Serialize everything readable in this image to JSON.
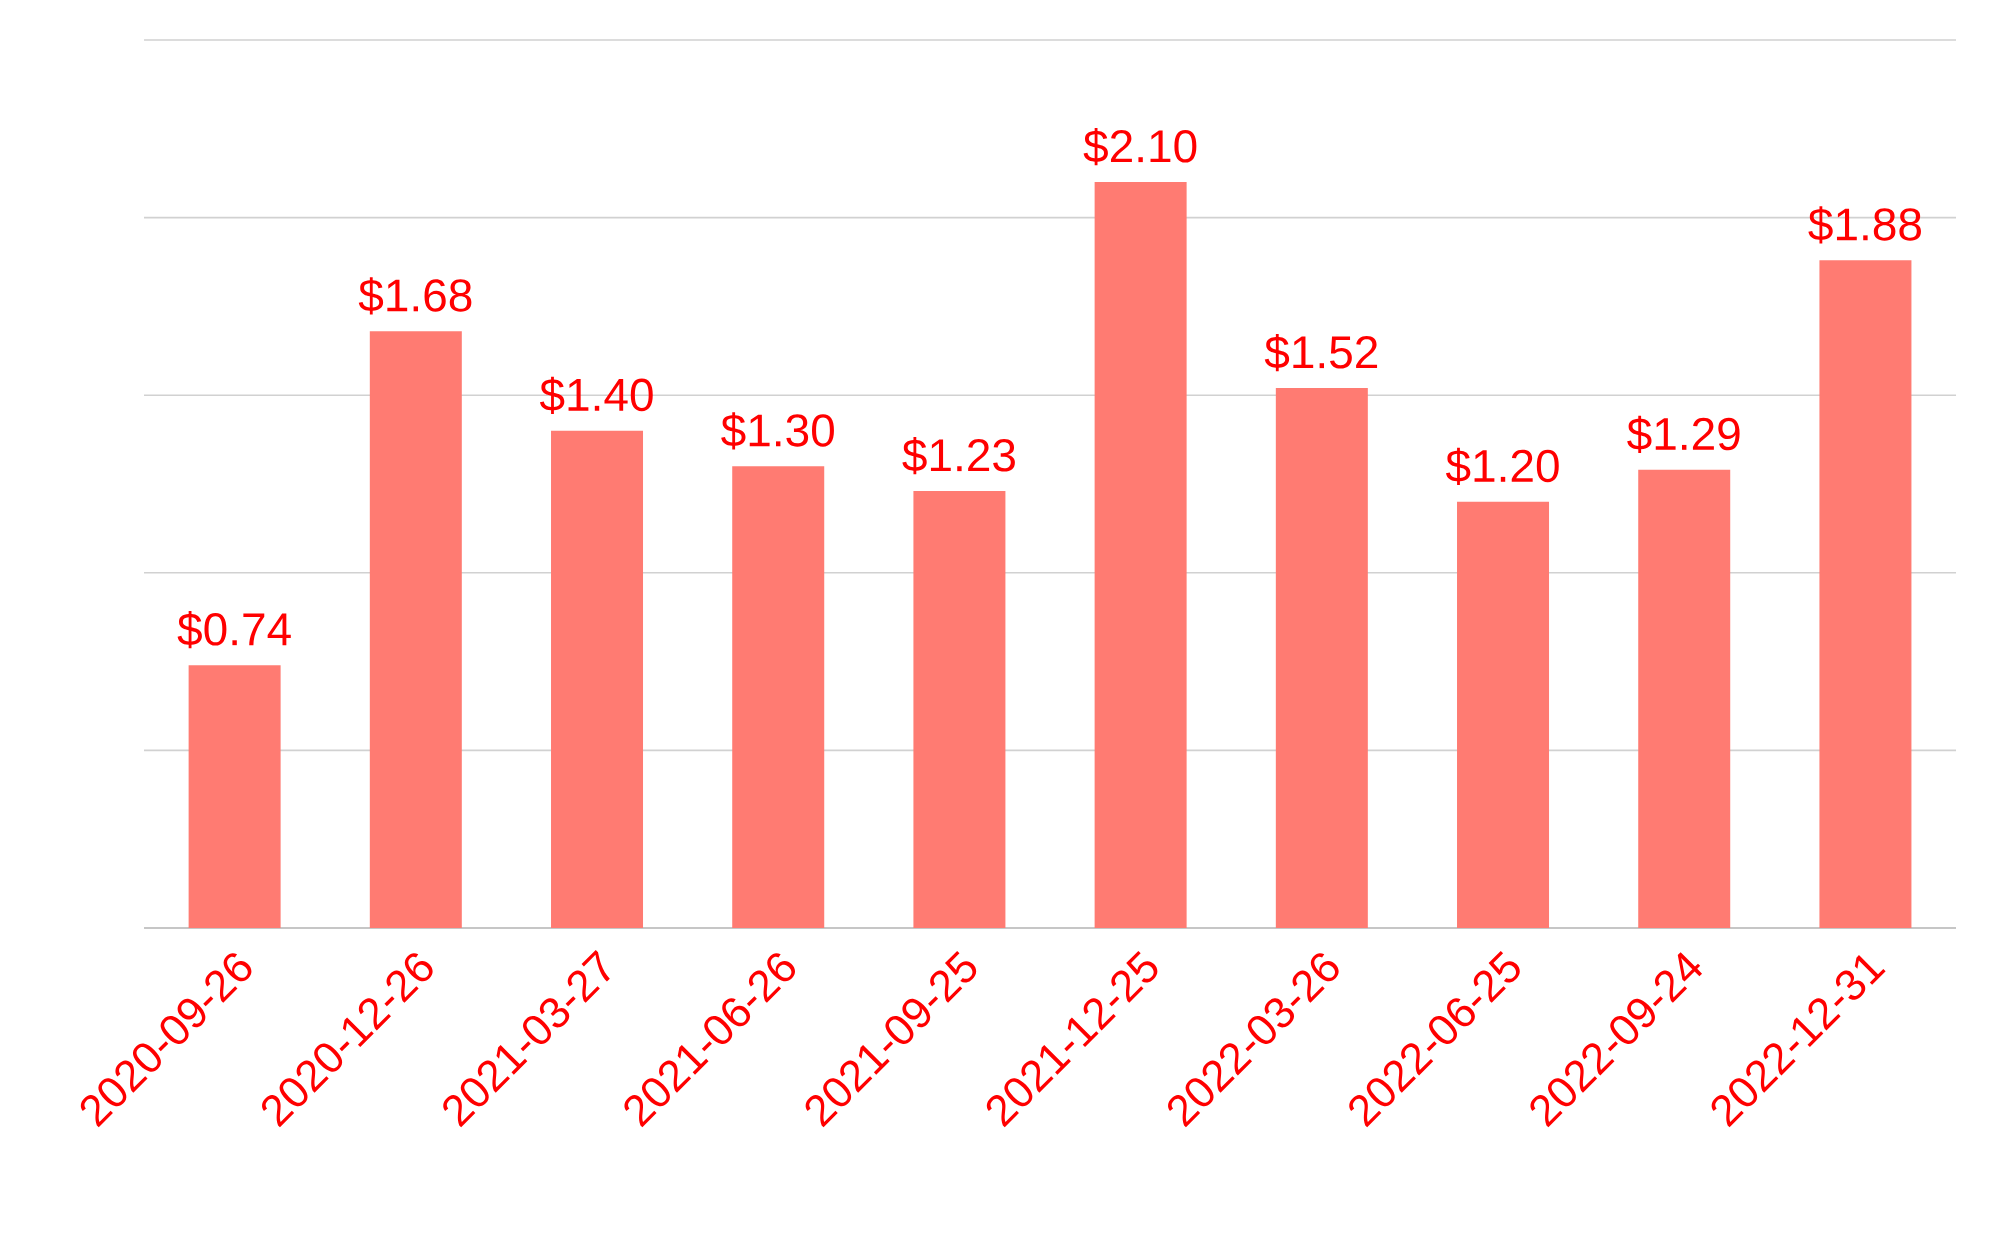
{
  "chart_data": {
    "type": "bar",
    "categories": [
      "2020-09-26",
      "2020-12-26",
      "2021-03-27",
      "2021-06-26",
      "2021-09-25",
      "2021-12-25",
      "2022-03-26",
      "2022-06-25",
      "2022-09-24",
      "2022-12-31"
    ],
    "values": [
      0.74,
      1.68,
      1.4,
      1.3,
      1.23,
      2.1,
      1.52,
      1.2,
      1.29,
      1.88
    ],
    "value_labels": [
      "$0.74",
      "$1.68",
      "$1.40",
      "$1.30",
      "$1.23",
      "$2.10",
      "$1.52",
      "$1.20",
      "$1.29",
      "$1.88"
    ],
    "color": "#ff7b72",
    "ylim": [
      0,
      2.5
    ],
    "yticks": [
      {
        "value": 0,
        "label": null
      },
      {
        "value": 0.5,
        "label": null
      },
      {
        "value": 1.0,
        "label": null
      },
      {
        "value": 1.5,
        "label": null
      },
      {
        "value": 2.0,
        "label": null
      },
      {
        "value": 2.5,
        "label": null
      }
    ],
    "grid": "y",
    "tick_labels": "x"
  }
}
